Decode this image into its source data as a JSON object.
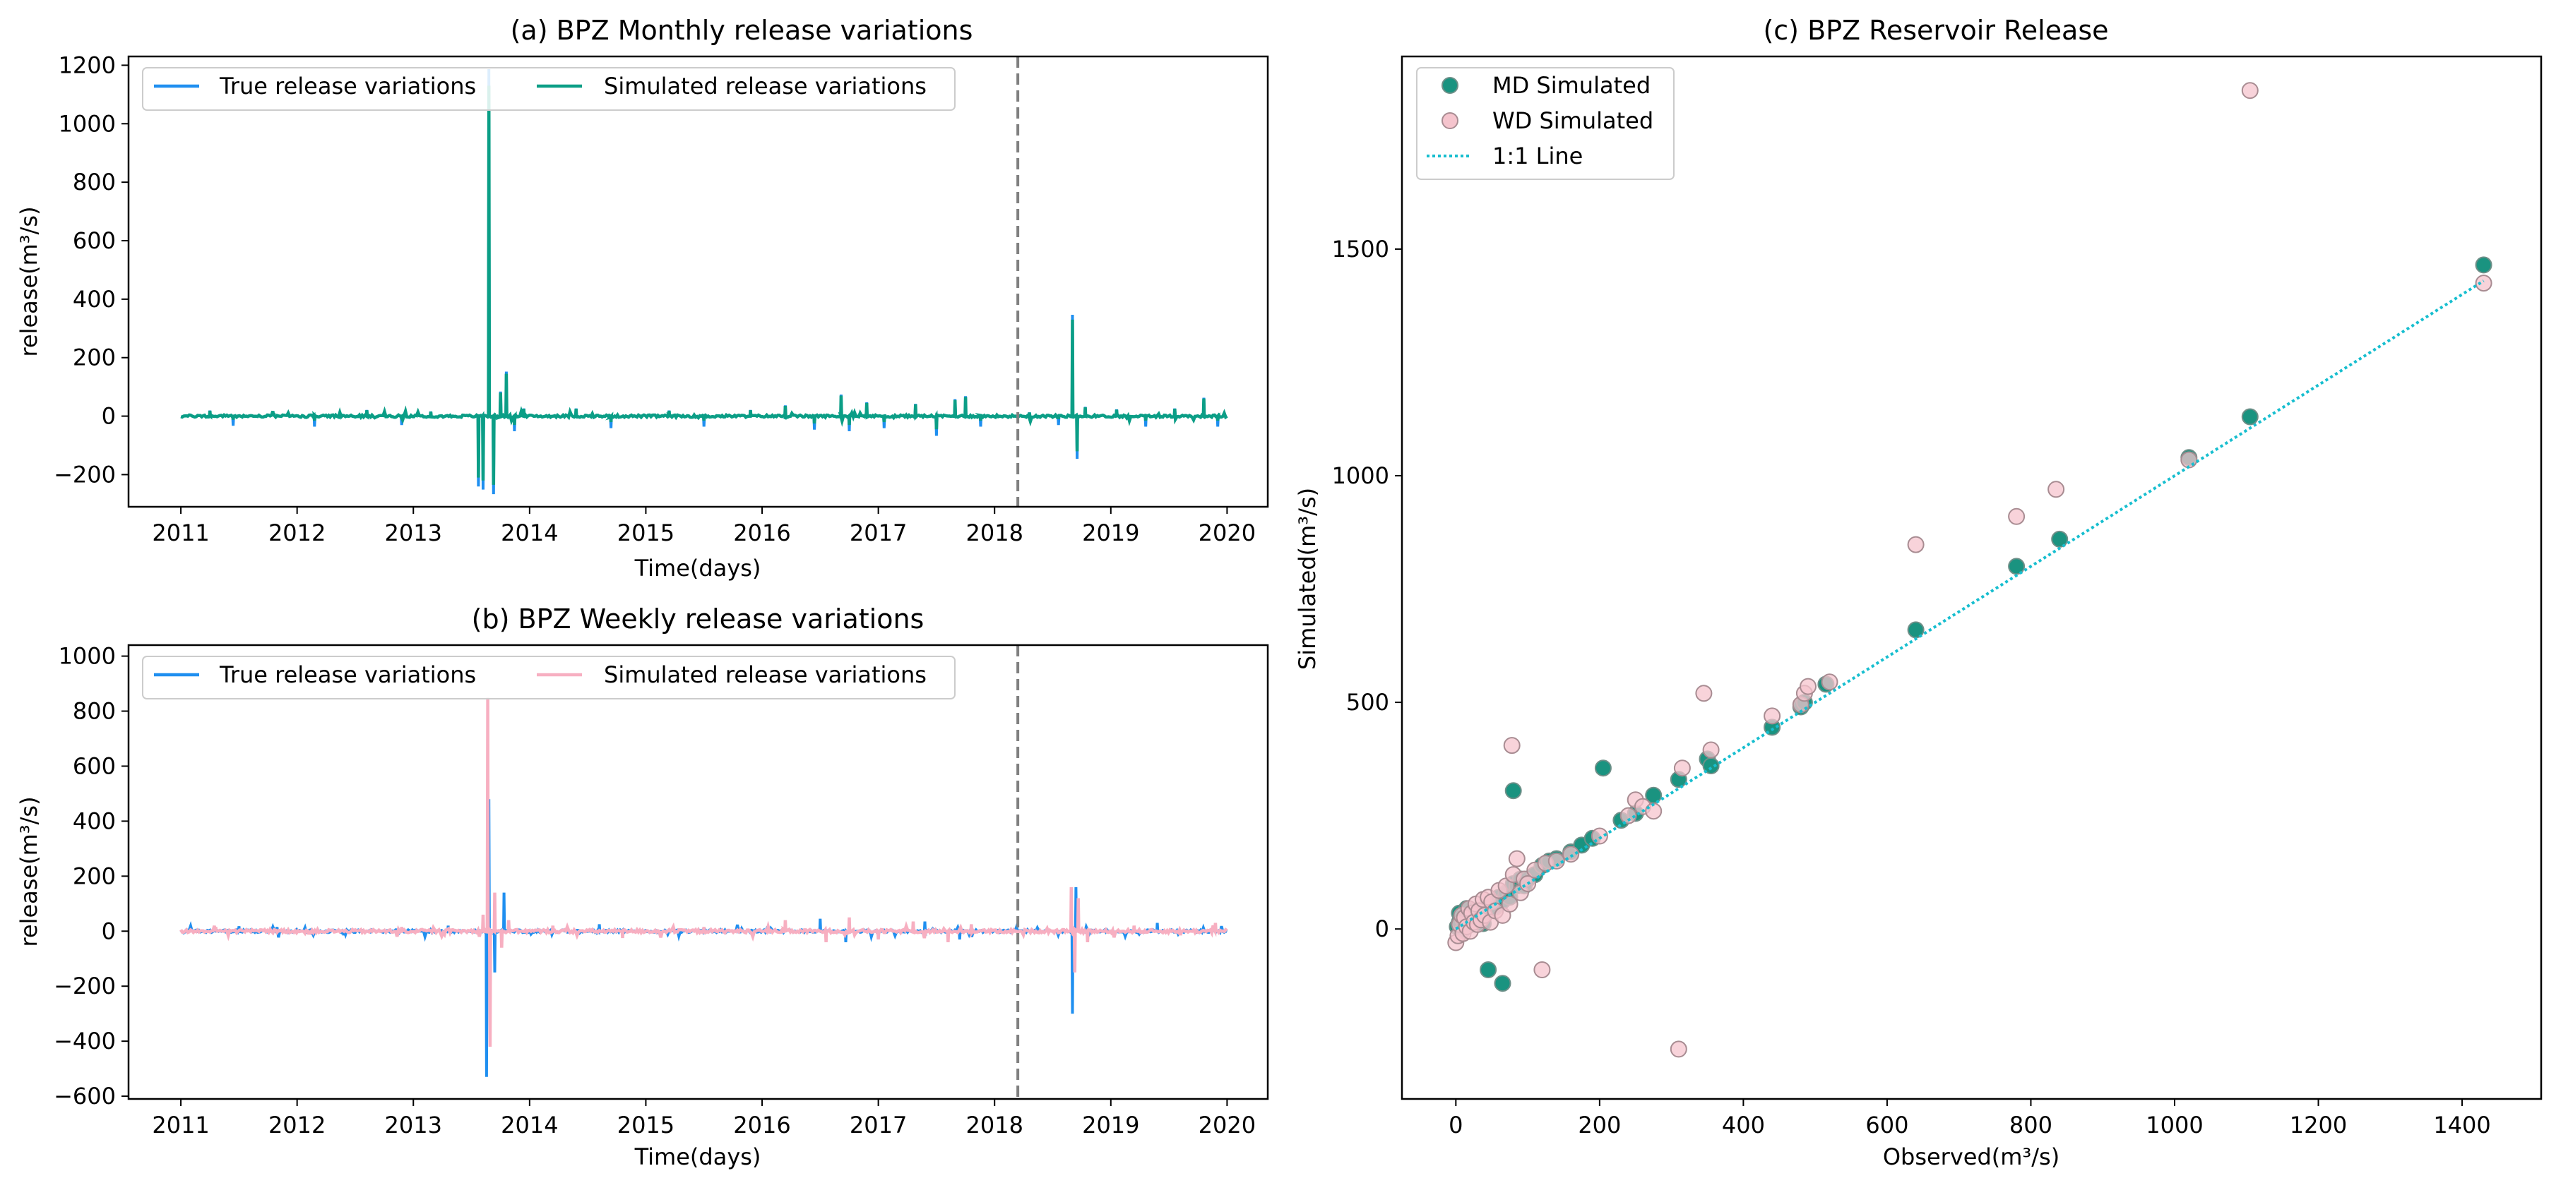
{
  "colors": {
    "true_line": "#1f8ff0",
    "monthly_sim": "#0b9e86",
    "weekly_sim": "#f7afc1",
    "md_fill": "#1a9380",
    "md_edge": "#6e8f88",
    "wd_fill": "#f5c4cd",
    "wd_edge": "#a88c92",
    "one_to_one": "#17becf",
    "vline": "#808080"
  },
  "chart_data": [
    {
      "id": "monthly",
      "type": "line",
      "title": "(a) BPZ Monthly release variations",
      "xlabel": "Time(days)",
      "ylabel": "release(m³/s)",
      "xlim": [
        2010.55,
        2020.35
      ],
      "ylim": [
        -310,
        1230
      ],
      "x_ticks": [
        2011,
        2012,
        2013,
        2014,
        2015,
        2016,
        2017,
        2018,
        2019,
        2020
      ],
      "x_tick_labels": [
        "2011",
        "2012",
        "2013",
        "2014",
        "2015",
        "2016",
        "2017",
        "2018",
        "2019",
        "2020"
      ],
      "y_ticks": [
        -200,
        0,
        200,
        400,
        600,
        800,
        1000,
        1200
      ],
      "y_tick_labels": [
        "−200",
        "0",
        "200",
        "400",
        "600",
        "800",
        "1000",
        "1200"
      ],
      "vline_x": 2018.2,
      "legend": {
        "position": "upper-left",
        "columns": 2,
        "entries": [
          "True release variations",
          "Simulated release variations"
        ]
      },
      "events": [
        {
          "x": 2011.25,
          "v": 18
        },
        {
          "x": 2011.45,
          "v": -12
        },
        {
          "x": 2011.8,
          "v": 10
        },
        {
          "x": 2012.15,
          "v": -15
        },
        {
          "x": 2012.6,
          "v": 20
        },
        {
          "x": 2012.9,
          "v": -10
        },
        {
          "x": 2013.15,
          "v": 15
        },
        {
          "x": 2013.56,
          "v": -210
        },
        {
          "x": 2013.6,
          "v": -220
        },
        {
          "x": 2013.65,
          "v": 1130
        },
        {
          "x": 2013.69,
          "v": -235
        },
        {
          "x": 2013.75,
          "v": 80
        },
        {
          "x": 2013.8,
          "v": 145
        },
        {
          "x": 2013.87,
          "v": -30
        },
        {
          "x": 2013.95,
          "v": 25
        },
        {
          "x": 2014.4,
          "v": 25
        },
        {
          "x": 2014.7,
          "v": -20
        },
        {
          "x": 2015.2,
          "v": 18
        },
        {
          "x": 2015.5,
          "v": -15
        },
        {
          "x": 2015.9,
          "v": 20
        },
        {
          "x": 2016.2,
          "v": 35
        },
        {
          "x": 2016.45,
          "v": -25
        },
        {
          "x": 2016.68,
          "v": 70
        },
        {
          "x": 2016.75,
          "v": -30
        },
        {
          "x": 2016.9,
          "v": 45
        },
        {
          "x": 2017.05,
          "v": -20
        },
        {
          "x": 2017.32,
          "v": 40
        },
        {
          "x": 2017.5,
          "v": -45
        },
        {
          "x": 2017.66,
          "v": 55
        },
        {
          "x": 2017.75,
          "v": 65
        },
        {
          "x": 2017.88,
          "v": -15
        },
        {
          "x": 2018.3,
          "v": 12
        },
        {
          "x": 2018.55,
          "v": -10
        },
        {
          "x": 2018.67,
          "v": 330
        },
        {
          "x": 2018.71,
          "v": -120
        },
        {
          "x": 2018.78,
          "v": 30
        },
        {
          "x": 2019.05,
          "v": 22
        },
        {
          "x": 2019.3,
          "v": -15
        },
        {
          "x": 2019.55,
          "v": 25
        },
        {
          "x": 2019.8,
          "v": 60
        },
        {
          "x": 2019.92,
          "v": -15
        }
      ]
    },
    {
      "id": "weekly",
      "type": "line",
      "title": "(b) BPZ Weekly release variations",
      "xlabel": "Time(days)",
      "ylabel": "release(m³/s)",
      "xlim": [
        2010.55,
        2020.35
      ],
      "ylim": [
        -610,
        1040
      ],
      "x_ticks": [
        2011,
        2012,
        2013,
        2014,
        2015,
        2016,
        2017,
        2018,
        2019,
        2020
      ],
      "x_tick_labels": [
        "2011",
        "2012",
        "2013",
        "2014",
        "2015",
        "2016",
        "2017",
        "2018",
        "2019",
        "2020"
      ],
      "y_ticks": [
        -600,
        -400,
        -200,
        0,
        200,
        400,
        600,
        800,
        1000
      ],
      "y_tick_labels": [
        "−600",
        "−400",
        "−200",
        "0",
        "200",
        "400",
        "600",
        "800",
        "1000"
      ],
      "vline_x": 2018.2,
      "legend": {
        "position": "upper-left",
        "columns": 2,
        "entries": [
          "True release variations",
          "Simulated release variations"
        ]
      },
      "true_events": [
        {
          "x": 2011.5,
          "v": 18
        },
        {
          "x": 2012.4,
          "v": -15
        },
        {
          "x": 2013.3,
          "v": 20
        },
        {
          "x": 2013.63,
          "v": -530
        },
        {
          "x": 2013.65,
          "v": 480
        },
        {
          "x": 2013.7,
          "v": -150
        },
        {
          "x": 2013.78,
          "v": 140
        },
        {
          "x": 2014.6,
          "v": 25
        },
        {
          "x": 2016.5,
          "v": 45
        },
        {
          "x": 2016.72,
          "v": -40
        },
        {
          "x": 2017.4,
          "v": 35
        },
        {
          "x": 2017.7,
          "v": -30
        },
        {
          "x": 2018.67,
          "v": -300
        },
        {
          "x": 2018.7,
          "v": 160
        },
        {
          "x": 2019.4,
          "v": 30
        }
      ],
      "sim_events": [
        {
          "x": 2011.3,
          "v": 15
        },
        {
          "x": 2012.1,
          "v": -12
        },
        {
          "x": 2012.9,
          "v": 15
        },
        {
          "x": 2013.6,
          "v": 60
        },
        {
          "x": 2013.64,
          "v": 850
        },
        {
          "x": 2013.66,
          "v": -420
        },
        {
          "x": 2013.7,
          "v": 140
        },
        {
          "x": 2013.76,
          "v": -60
        },
        {
          "x": 2013.82,
          "v": 40
        },
        {
          "x": 2014.2,
          "v": 20
        },
        {
          "x": 2014.8,
          "v": -25
        },
        {
          "x": 2015.5,
          "v": 15
        },
        {
          "x": 2016.2,
          "v": 40
        },
        {
          "x": 2016.55,
          "v": -40
        },
        {
          "x": 2016.75,
          "v": 50
        },
        {
          "x": 2017.0,
          "v": -30
        },
        {
          "x": 2017.3,
          "v": 35
        },
        {
          "x": 2017.6,
          "v": -40
        },
        {
          "x": 2017.8,
          "v": 25
        },
        {
          "x": 2018.66,
          "v": 160
        },
        {
          "x": 2018.69,
          "v": -150
        },
        {
          "x": 2018.72,
          "v": 120
        },
        {
          "x": 2018.8,
          "v": -40
        },
        {
          "x": 2019.2,
          "v": 20
        },
        {
          "x": 2019.6,
          "v": -15
        },
        {
          "x": 2019.9,
          "v": 30
        }
      ]
    },
    {
      "id": "scatter",
      "type": "scatter",
      "title": "(c) BPZ Reservoir Release",
      "xlabel": "Observed(m³/s)",
      "ylabel": "Simulated(m³/s)",
      "xlim": [
        -75,
        1510
      ],
      "ylim": [
        -375,
        1925
      ],
      "x_ticks": [
        0,
        200,
        400,
        600,
        800,
        1000,
        1200,
        1400
      ],
      "x_tick_labels": [
        "0",
        "200",
        "400",
        "600",
        "800",
        "1000",
        "1200",
        "1400"
      ],
      "y_ticks": [
        0,
        500,
        1000,
        1500
      ],
      "y_tick_labels": [
        "0",
        "500",
        "1000",
        "1500"
      ],
      "legend": {
        "position": "upper-left",
        "entries": [
          "MD Simulated",
          "WD Simulated",
          "1:1 Line"
        ]
      },
      "one_to_one": [
        [
          0,
          0
        ],
        [
          1430,
          1430
        ]
      ],
      "series": [
        {
          "name": "MD Simulated",
          "points": [
            [
              2,
              5
            ],
            [
              5,
              15
            ],
            [
              8,
              -5
            ],
            [
              10,
              20
            ],
            [
              12,
              10
            ],
            [
              15,
              30
            ],
            [
              18,
              8
            ],
            [
              20,
              25
            ],
            [
              25,
              18
            ],
            [
              28,
              40
            ],
            [
              30,
              22
            ],
            [
              35,
              35
            ],
            [
              38,
              12
            ],
            [
              40,
              45
            ],
            [
              45,
              40
            ],
            [
              50,
              55
            ],
            [
              55,
              48
            ],
            [
              60,
              70
            ],
            [
              65,
              62
            ],
            [
              70,
              80
            ],
            [
              75,
              70
            ],
            [
              80,
              100
            ],
            [
              85,
              95
            ],
            [
              90,
              110
            ],
            [
              100,
              110
            ],
            [
              110,
              120
            ],
            [
              120,
              140
            ],
            [
              130,
              150
            ],
            [
              140,
              155
            ],
            [
              160,
              170
            ],
            [
              175,
              185
            ],
            [
              190,
              200
            ],
            [
              205,
              355
            ],
            [
              230,
              240
            ],
            [
              250,
              255
            ],
            [
              275,
              295
            ],
            [
              310,
              330
            ],
            [
              350,
              375
            ],
            [
              355,
              360
            ],
            [
              440,
              445
            ],
            [
              480,
              490
            ],
            [
              485,
              500
            ],
            [
              515,
              540
            ],
            [
              640,
              660
            ],
            [
              780,
              800
            ],
            [
              840,
              860
            ],
            [
              1020,
              1040
            ],
            [
              1105,
              1130
            ],
            [
              1430,
              1465
            ],
            [
              45,
              -90
            ],
            [
              65,
              -120
            ],
            [
              80,
              305
            ],
            [
              95,
              95
            ],
            [
              5,
              35
            ],
            [
              15,
              45
            ]
          ]
        },
        {
          "name": "WD Simulated",
          "points": [
            [
              0,
              -30
            ],
            [
              3,
              -15
            ],
            [
              5,
              10
            ],
            [
              8,
              30
            ],
            [
              10,
              -10
            ],
            [
              12,
              25
            ],
            [
              15,
              5
            ],
            [
              18,
              45
            ],
            [
              20,
              -5
            ],
            [
              22,
              35
            ],
            [
              25,
              15
            ],
            [
              28,
              55
            ],
            [
              30,
              10
            ],
            [
              32,
              40
            ],
            [
              35,
              20
            ],
            [
              38,
              65
            ],
            [
              40,
              30
            ],
            [
              45,
              70
            ],
            [
              48,
              15
            ],
            [
              50,
              60
            ],
            [
              55,
              40
            ],
            [
              60,
              85
            ],
            [
              65,
              30
            ],
            [
              70,
              95
            ],
            [
              75,
              55
            ],
            [
              78,
              405
            ],
            [
              80,
              120
            ],
            [
              85,
              155
            ],
            [
              90,
              80
            ],
            [
              95,
              110
            ],
            [
              100,
              100
            ],
            [
              110,
              130
            ],
            [
              120,
              -90
            ],
            [
              125,
              145
            ],
            [
              140,
              150
            ],
            [
              160,
              165
            ],
            [
              200,
              205
            ],
            [
              240,
              250
            ],
            [
              250,
              285
            ],
            [
              260,
              270
            ],
            [
              275,
              260
            ],
            [
              310,
              -265
            ],
            [
              315,
              355
            ],
            [
              345,
              520
            ],
            [
              355,
              395
            ],
            [
              440,
              470
            ],
            [
              480,
              495
            ],
            [
              485,
              520
            ],
            [
              490,
              535
            ],
            [
              520,
              545
            ],
            [
              640,
              848
            ],
            [
              780,
              910
            ],
            [
              835,
              970
            ],
            [
              1020,
              1035
            ],
            [
              1105,
              1850
            ],
            [
              1430,
              1425
            ]
          ]
        }
      ]
    }
  ]
}
